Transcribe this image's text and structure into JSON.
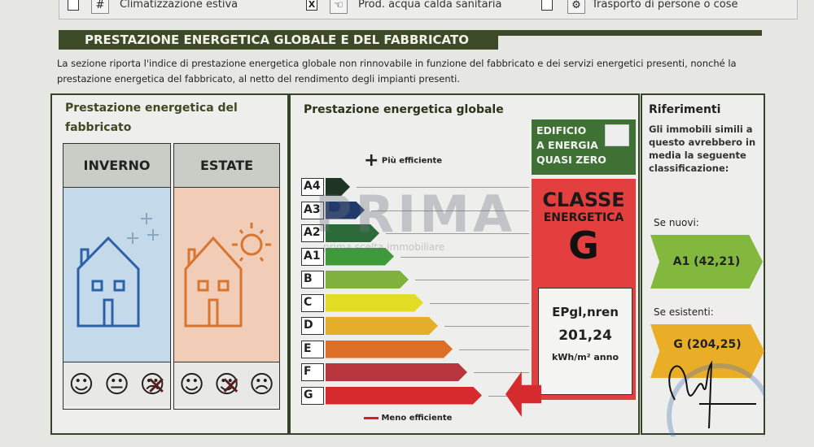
{
  "services": [
    {
      "label": "Climatizzazione estiva",
      "checked": false,
      "icon": "air-conditioning-icon"
    },
    {
      "label": "Prod. acqua calda sanitaria",
      "checked": true,
      "icon": "hot-water-tap-icon"
    },
    {
      "label": "Trasporto di persone o cose",
      "checked": false,
      "icon": "gear-icon"
    }
  ],
  "check_mark": "X",
  "section_title": "PRESTAZIONE ENERGETICA GLOBALE  E DEL FABBRICATO",
  "description": "La sezione riporta l'indice di prestazione energetica globale non rinnovabile in funzione del fabbricato e dei servizi energetici presenti, nonché la prestazione energetica del fabbricato, al netto del rendimento degli impianti presenti.",
  "fabbricato": {
    "title": "Prestazione energetica del fabbricato",
    "winter": {
      "label": "INVERNO",
      "rating": "poor",
      "color": "#c4d9ea"
    },
    "summer": {
      "label": "ESTATE",
      "rating": "medium",
      "color": "#f1cdb8"
    }
  },
  "globale": {
    "title": "Prestazione energetica globale",
    "more_efficient": "Più efficiente",
    "less_efficient": "Meno efficiente",
    "classes": [
      {
        "label": "A4",
        "color": "#1f3524"
      },
      {
        "label": "A3",
        "color": "#223a6a"
      },
      {
        "label": "A2",
        "color": "#2d6a3a"
      },
      {
        "label": "A1",
        "color": "#3f9a3c"
      },
      {
        "label": "B",
        "color": "#7fb13c"
      },
      {
        "label": "C",
        "color": "#e2dc23"
      },
      {
        "label": "D",
        "color": "#e4ad2a"
      },
      {
        "label": "E",
        "color": "#dd6e26"
      },
      {
        "label": "F",
        "color": "#b9353d"
      },
      {
        "label": "G",
        "color": "#d52a2e"
      }
    ],
    "nzeb_label": [
      "EDIFICIO",
      "A ENERGIA",
      "QUASI ZERO"
    ],
    "nzeb_checked": false,
    "class_title": "CLASSE",
    "class_subtitle": "ENERGETICA",
    "class_value": "G",
    "index_label": "EPgl,nren",
    "index_value": "201,24",
    "index_unit": "kWh/m² anno"
  },
  "riferimenti": {
    "title": "Riferimenti",
    "text": "Gli immobili simili a questo avrebbero in media la seguente classificazione:",
    "new_label": "Se nuovi:",
    "new_value": "A1 (42,21)",
    "existing_label": "Se esistenti:",
    "existing_value": "G (204,25)"
  },
  "watermark": {
    "brand": "PRIMA",
    "tagline": "prima scelta immobiliare"
  }
}
